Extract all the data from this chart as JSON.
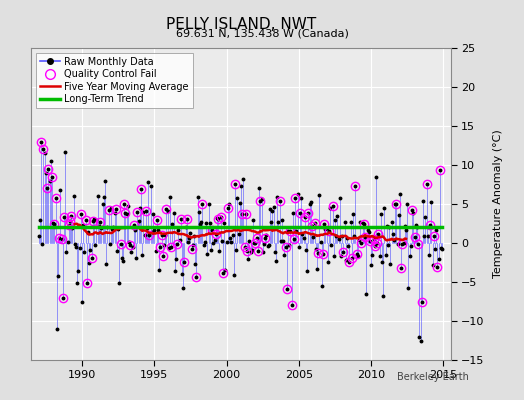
{
  "title": "PELLY ISLAND, NWT",
  "subtitle": "69.631 N, 135.438 W (Canada)",
  "ylabel": "Temperature Anomaly (°C)",
  "watermark": "Berkeley Earth",
  "xlim": [
    1986.5,
    2015.5
  ],
  "ylim": [
    -15,
    25
  ],
  "yticks": [
    -15,
    -10,
    -5,
    0,
    5,
    10,
    15,
    20,
    25
  ],
  "xticks": [
    1990,
    1995,
    2000,
    2005,
    2010,
    2015
  ],
  "bg_color": "#e0e0e0",
  "plot_bg": "#ebebeb",
  "raw_line_color": "#5555ff",
  "raw_dot_color": "#000000",
  "qc_fail_color": "#ff00ff",
  "moving_avg_color": "#dd0000",
  "trend_color": "#00bb00",
  "trend_value": 2.0,
  "seed": 12345
}
